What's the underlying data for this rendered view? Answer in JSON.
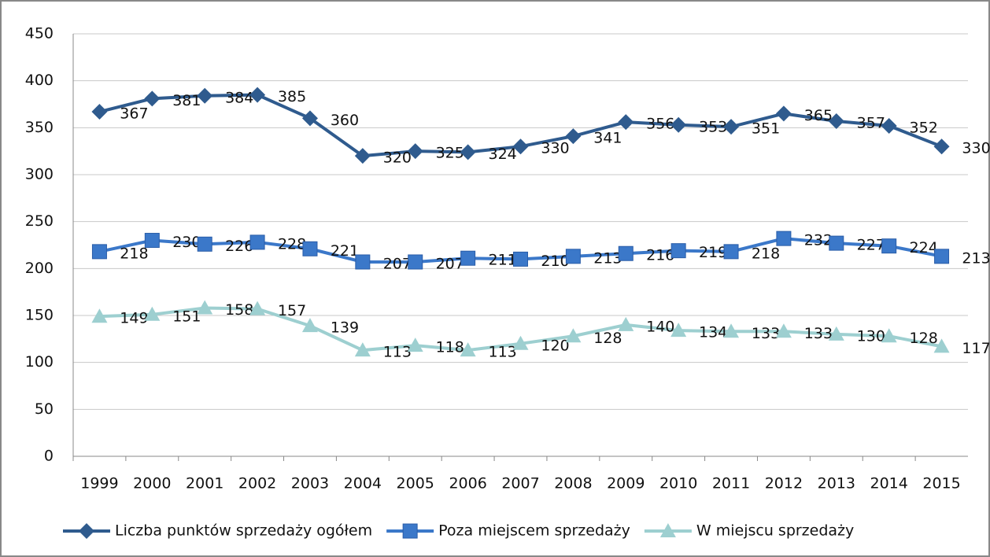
{
  "chart_data": {
    "type": "line",
    "categories": [
      "1999",
      "2000",
      "2001",
      "2002",
      "2003",
      "2004",
      "2005",
      "2006",
      "2007",
      "2008",
      "2009",
      "2010",
      "2011",
      "2012",
      "2013",
      "2014",
      "2015"
    ],
    "series": [
      {
        "name": "Liczba punktów sprzedaży ogółem",
        "color": "#2f5b8e",
        "marker": "diamond",
        "values": [
          367,
          381,
          384,
          385,
          360,
          320,
          325,
          324,
          330,
          341,
          356,
          353,
          351,
          365,
          357,
          352,
          330
        ]
      },
      {
        "name": "Poza miejscem sprzedaży",
        "color": "#3b78c9",
        "marker": "square",
        "values": [
          218,
          230,
          226,
          228,
          221,
          207,
          207,
          211,
          210,
          213,
          216,
          219,
          218,
          232,
          227,
          224,
          213
        ]
      },
      {
        "name": "W miejscu sprzedaży",
        "color": "#9dcfd0",
        "marker": "triangle",
        "values": [
          149,
          151,
          158,
          157,
          139,
          113,
          118,
          113,
          120,
          128,
          140,
          134,
          133,
          133,
          130,
          128,
          117
        ]
      }
    ],
    "ylim": [
      0,
      450
    ],
    "yticks": [
      0,
      50,
      100,
      150,
      200,
      250,
      300,
      350,
      400,
      450
    ],
    "grid": true,
    "legend": "bottom"
  }
}
